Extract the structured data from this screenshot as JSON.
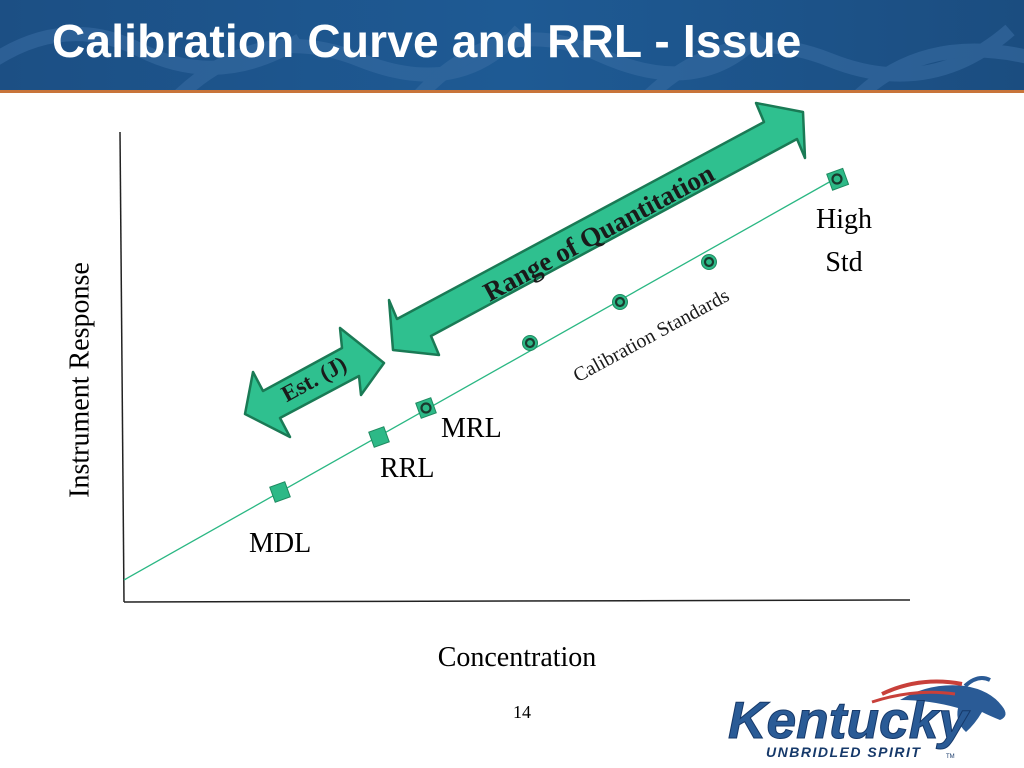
{
  "slide": {
    "title": "Calibration Curve and RRL - Issue",
    "page_number": "14"
  },
  "diagram": {
    "axis_x_label": "Concentration",
    "axis_y_label": "Instrument Response",
    "labels": {
      "mdl": "MDL",
      "rrl": "RRL",
      "mrl": "MRL",
      "high_std_line1": "High",
      "high_std_line2": "Std",
      "calibration_standards": "Calibration Standards"
    },
    "arrows": {
      "range_of_quantitation": "Range of Quantitation",
      "estimated": "Est. (J)"
    },
    "colors": {
      "marker_fill": "#2db987",
      "marker_stroke": "#1e8a60",
      "arrow_fill": "#2fc08f",
      "arrow_stroke": "#1a7a55",
      "line": "#2ab783",
      "header": "#1e5590",
      "header_rule": "#c8743a"
    }
  },
  "logo": {
    "wordmark": "Kentucky",
    "tagline": "UNBRIDLED SPIRIT",
    "tm": "TM"
  }
}
